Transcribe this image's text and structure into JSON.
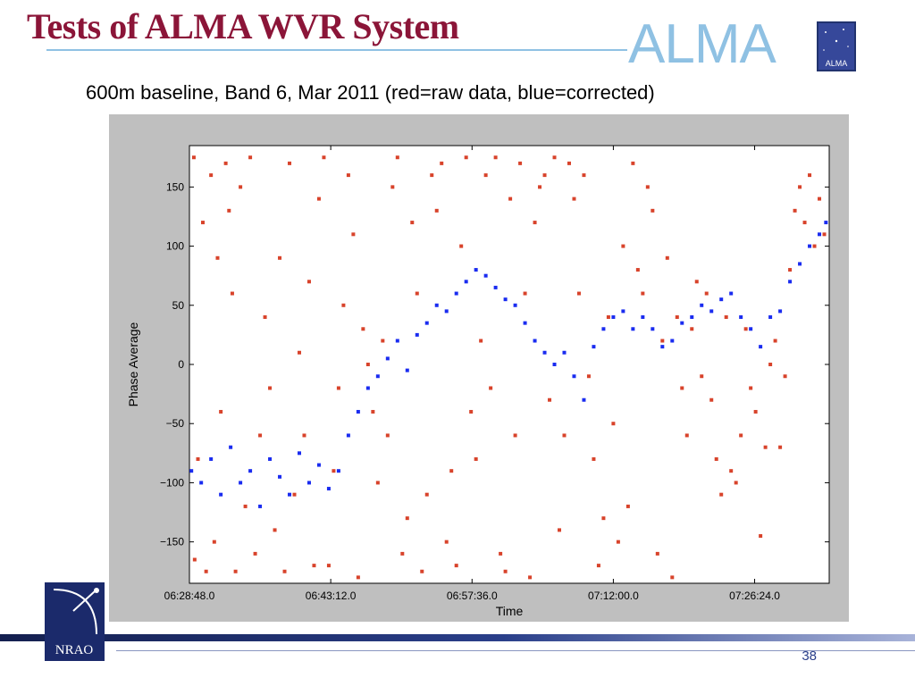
{
  "slide": {
    "title": "Tests of ALMA WVR System",
    "subtitle": "600m baseline, Band 6, Mar 2011 (red=raw data, blue=corrected)",
    "page_number": "38"
  },
  "logos": {
    "alma_wordmark": "ALMA",
    "alma_icon_text": "ALMA",
    "nrao_text": "NRAO"
  },
  "colors": {
    "title": "#8b1538",
    "alma_blue": "#8fc1e3",
    "raw": "#d8432b",
    "corrected": "#1a2cf0",
    "navy": "#1b2a6b"
  },
  "chart_data": {
    "type": "scatter",
    "title": "",
    "xlabel": "Time",
    "ylabel": "Phase Average",
    "xlim": [
      "06:28:48.0",
      "07:34:00.0"
    ],
    "ylim": [
      -185,
      185
    ],
    "xticks": [
      "06:28:48.0",
      "06:43:12.0",
      "06:57:36.0",
      "07:12:00.0",
      "07:26:24.0"
    ],
    "yticks": [
      -150,
      -100,
      -50,
      0,
      50,
      100,
      150
    ],
    "grid": false,
    "legend": "none",
    "series": [
      {
        "color": "#d8432b",
        "points": [
          [
            "06:29:15",
            175
          ],
          [
            "06:29:20",
            -165
          ],
          [
            "06:29:40",
            -80
          ],
          [
            "06:30:10",
            120
          ],
          [
            "06:30:30",
            -175
          ],
          [
            "06:31:00",
            160
          ],
          [
            "06:31:20",
            -150
          ],
          [
            "06:31:40",
            90
          ],
          [
            "06:32:00",
            -40
          ],
          [
            "06:32:30",
            170
          ],
          [
            "06:32:50",
            130
          ],
          [
            "06:33:10",
            60
          ],
          [
            "06:33:30",
            -175
          ],
          [
            "06:34:00",
            150
          ],
          [
            "06:34:30",
            -120
          ],
          [
            "06:35:00",
            175
          ],
          [
            "06:35:30",
            -160
          ],
          [
            "06:36:00",
            -60
          ],
          [
            "06:36:30",
            40
          ],
          [
            "06:37:00",
            -20
          ],
          [
            "06:37:30",
            -140
          ],
          [
            "06:38:00",
            90
          ],
          [
            "06:38:30",
            -175
          ],
          [
            "06:39:00",
            170
          ],
          [
            "06:39:30",
            -110
          ],
          [
            "06:40:00",
            10
          ],
          [
            "06:40:30",
            -60
          ],
          [
            "06:41:00",
            70
          ],
          [
            "06:41:30",
            -170
          ],
          [
            "06:42:00",
            140
          ],
          [
            "06:42:30",
            175
          ],
          [
            "06:43:00",
            -170
          ],
          [
            "06:43:30",
            -90
          ],
          [
            "06:44:00",
            -20
          ],
          [
            "06:44:30",
            50
          ],
          [
            "06:45:00",
            160
          ],
          [
            "06:45:30",
            110
          ],
          [
            "06:46:00",
            -180
          ],
          [
            "06:46:30",
            30
          ],
          [
            "06:47:00",
            0
          ],
          [
            "06:47:30",
            -40
          ],
          [
            "06:48:00",
            -100
          ],
          [
            "06:48:30",
            20
          ],
          [
            "06:49:00",
            -60
          ],
          [
            "06:49:30",
            150
          ],
          [
            "06:50:00",
            175
          ],
          [
            "06:50:30",
            -160
          ],
          [
            "06:51:00",
            -130
          ],
          [
            "06:51:30",
            120
          ],
          [
            "06:52:00",
            60
          ],
          [
            "06:52:30",
            -175
          ],
          [
            "06:53:00",
            -110
          ],
          [
            "06:53:30",
            160
          ],
          [
            "06:54:00",
            130
          ],
          [
            "06:54:30",
            170
          ],
          [
            "06:55:00",
            -150
          ],
          [
            "06:55:30",
            -90
          ],
          [
            "06:56:00",
            -170
          ],
          [
            "06:56:30",
            100
          ],
          [
            "06:57:00",
            175
          ],
          [
            "06:57:30",
            -40
          ],
          [
            "06:58:00",
            -80
          ],
          [
            "06:58:30",
            20
          ],
          [
            "06:59:00",
            160
          ],
          [
            "06:59:30",
            -20
          ],
          [
            "07:00:00",
            175
          ],
          [
            "07:00:30",
            -160
          ],
          [
            "07:01:00",
            -175
          ],
          [
            "07:01:30",
            140
          ],
          [
            "07:02:00",
            -60
          ],
          [
            "07:02:30",
            170
          ],
          [
            "07:03:00",
            60
          ],
          [
            "07:03:30",
            -180
          ],
          [
            "07:04:00",
            120
          ],
          [
            "07:04:30",
            150
          ],
          [
            "07:05:00",
            160
          ],
          [
            "07:05:30",
            -30
          ],
          [
            "07:06:00",
            175
          ],
          [
            "07:06:30",
            -140
          ],
          [
            "07:07:00",
            -60
          ],
          [
            "07:07:30",
            170
          ],
          [
            "07:08:00",
            140
          ],
          [
            "07:08:30",
            60
          ],
          [
            "07:09:00",
            160
          ],
          [
            "07:09:30",
            -10
          ],
          [
            "07:10:00",
            -80
          ],
          [
            "07:10:30",
            -170
          ],
          [
            "07:11:00",
            -130
          ],
          [
            "07:11:30",
            40
          ],
          [
            "07:12:00",
            -50
          ],
          [
            "07:12:30",
            -150
          ],
          [
            "07:13:00",
            100
          ],
          [
            "07:13:30",
            -120
          ],
          [
            "07:14:00",
            170
          ],
          [
            "07:14:30",
            80
          ],
          [
            "07:15:00",
            60
          ],
          [
            "07:15:30",
            150
          ],
          [
            "07:16:00",
            130
          ],
          [
            "07:16:30",
            -160
          ],
          [
            "07:17:00",
            20
          ],
          [
            "07:17:30",
            90
          ],
          [
            "07:18:00",
            -180
          ],
          [
            "07:18:30",
            40
          ],
          [
            "07:19:00",
            -20
          ],
          [
            "07:19:30",
            -60
          ],
          [
            "07:20:00",
            30
          ],
          [
            "07:20:30",
            70
          ],
          [
            "07:21:00",
            -10
          ],
          [
            "07:21:30",
            60
          ],
          [
            "07:22:00",
            -30
          ],
          [
            "07:22:30",
            -80
          ],
          [
            "07:23:00",
            -110
          ],
          [
            "07:23:30",
            40
          ],
          [
            "07:24:00",
            -90
          ],
          [
            "07:24:30",
            -100
          ],
          [
            "07:25:00",
            -60
          ],
          [
            "07:25:30",
            30
          ],
          [
            "07:26:00",
            -20
          ],
          [
            "07:26:30",
            -40
          ],
          [
            "07:27:00",
            -145
          ],
          [
            "07:27:30",
            -70
          ],
          [
            "07:28:00",
            0
          ],
          [
            "07:28:30",
            20
          ],
          [
            "07:29:00",
            -70
          ],
          [
            "07:29:30",
            -10
          ],
          [
            "07:30:00",
            80
          ],
          [
            "07:30:30",
            130
          ],
          [
            "07:31:00",
            150
          ],
          [
            "07:31:30",
            120
          ],
          [
            "07:32:00",
            160
          ],
          [
            "07:32:30",
            100
          ],
          [
            "07:33:00",
            140
          ],
          [
            "07:33:30",
            110
          ]
        ]
      },
      {
        "color": "#1a2cf0",
        "points": [
          [
            "06:29:00",
            -90
          ],
          [
            "06:30:00",
            -100
          ],
          [
            "06:31:00",
            -80
          ],
          [
            "06:32:00",
            -110
          ],
          [
            "06:33:00",
            -70
          ],
          [
            "06:34:00",
            -100
          ],
          [
            "06:35:00",
            -90
          ],
          [
            "06:36:00",
            -120
          ],
          [
            "06:37:00",
            -80
          ],
          [
            "06:38:00",
            -95
          ],
          [
            "06:39:00",
            -110
          ],
          [
            "06:40:00",
            -75
          ],
          [
            "06:41:00",
            -100
          ],
          [
            "06:42:00",
            -85
          ],
          [
            "06:43:00",
            -105
          ],
          [
            "06:44:00",
            -90
          ],
          [
            "06:45:00",
            -60
          ],
          [
            "06:46:00",
            -40
          ],
          [
            "06:47:00",
            -20
          ],
          [
            "06:48:00",
            -10
          ],
          [
            "06:49:00",
            5
          ],
          [
            "06:50:00",
            20
          ],
          [
            "06:51:00",
            -5
          ],
          [
            "06:52:00",
            25
          ],
          [
            "06:53:00",
            35
          ],
          [
            "06:54:00",
            50
          ],
          [
            "06:55:00",
            45
          ],
          [
            "06:56:00",
            60
          ],
          [
            "06:57:00",
            70
          ],
          [
            "06:58:00",
            80
          ],
          [
            "06:59:00",
            75
          ],
          [
            "07:00:00",
            65
          ],
          [
            "07:01:00",
            55
          ],
          [
            "07:02:00",
            50
          ],
          [
            "07:03:00",
            35
          ],
          [
            "07:04:00",
            20
          ],
          [
            "07:05:00",
            10
          ],
          [
            "07:06:00",
            0
          ],
          [
            "07:07:00",
            10
          ],
          [
            "07:08:00",
            -10
          ],
          [
            "07:09:00",
            -30
          ],
          [
            "07:10:00",
            15
          ],
          [
            "07:11:00",
            30
          ],
          [
            "07:12:00",
            40
          ],
          [
            "07:13:00",
            45
          ],
          [
            "07:14:00",
            30
          ],
          [
            "07:15:00",
            40
          ],
          [
            "07:16:00",
            30
          ],
          [
            "07:17:00",
            15
          ],
          [
            "07:18:00",
            20
          ],
          [
            "07:19:00",
            35
          ],
          [
            "07:20:00",
            40
          ],
          [
            "07:21:00",
            50
          ],
          [
            "07:22:00",
            45
          ],
          [
            "07:23:00",
            55
          ],
          [
            "07:24:00",
            60
          ],
          [
            "07:25:00",
            40
          ],
          [
            "07:26:00",
            30
          ],
          [
            "07:27:00",
            15
          ],
          [
            "07:28:00",
            40
          ],
          [
            "07:29:00",
            45
          ],
          [
            "07:30:00",
            70
          ],
          [
            "07:31:00",
            85
          ],
          [
            "07:32:00",
            100
          ],
          [
            "07:33:00",
            110
          ],
          [
            "07:33:40",
            120
          ]
        ]
      }
    ]
  }
}
